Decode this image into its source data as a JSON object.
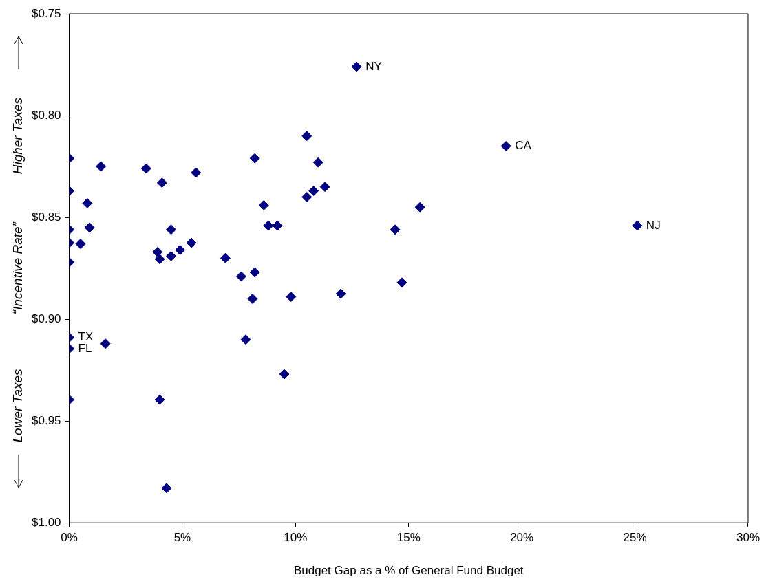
{
  "chart_data": {
    "type": "scatter",
    "xlabel": "Budget Gap as a % of General Fund Budget",
    "ylabel": "“Incentive Rate”",
    "x": [
      12.7,
      10.5,
      19.3,
      0,
      8.2,
      1.4,
      3.4,
      11.0,
      5.6,
      4.1,
      0,
      11.3,
      10.8,
      10.5,
      0.8,
      8.6,
      15.5,
      0,
      0.9,
      4.5,
      8.8,
      9.2,
      14.4,
      25.1,
      0,
      0.5,
      5.4,
      3.9,
      4.9,
      4.0,
      4.5,
      0,
      6.9,
      7.6,
      8.2,
      14.7,
      8.1,
      9.8,
      12.0,
      0,
      0,
      1.6,
      7.8,
      9.5,
      0,
      4.0,
      4.3
    ],
    "values": [
      0.776,
      0.81,
      0.815,
      0.821,
      0.821,
      0.825,
      0.826,
      0.823,
      0.828,
      0.833,
      0.837,
      0.835,
      0.837,
      0.84,
      0.843,
      0.844,
      0.845,
      0.856,
      0.855,
      0.856,
      0.854,
      0.854,
      0.856,
      0.854,
      0.8625,
      0.863,
      0.8625,
      0.867,
      0.866,
      0.8705,
      0.869,
      0.872,
      0.87,
      0.879,
      0.877,
      0.882,
      0.89,
      0.889,
      0.8875,
      0.909,
      0.9145,
      0.912,
      0.91,
      0.927,
      0.9395,
      0.9395,
      0.983
    ],
    "color": "#000080",
    "marker": "diamond",
    "xlim": [
      0,
      30
    ],
    "xticks": [
      {
        "value": 0,
        "label": "0%"
      },
      {
        "value": 5,
        "label": "5%"
      },
      {
        "value": 10,
        "label": "10%"
      },
      {
        "value": 15,
        "label": "15%"
      },
      {
        "value": 20,
        "label": "20%"
      },
      {
        "value": 25,
        "label": "25%"
      },
      {
        "value": 30,
        "label": "30%"
      }
    ],
    "ylim": [
      1.0,
      0.75
    ],
    "yticks": [
      {
        "value": 0.75,
        "label": "$0.75"
      },
      {
        "value": 0.8,
        "label": "$0.80"
      },
      {
        "value": 0.85,
        "label": "$0.85"
      },
      {
        "value": 0.9,
        "label": "$0.90"
      },
      {
        "value": 0.95,
        "label": "$0.95"
      },
      {
        "value": 1.0,
        "label": "$1.00"
      }
    ],
    "grid": false,
    "legend": false,
    "annotations": [
      "Higher Taxes",
      "Lower Taxes",
      {
        "text": "NY",
        "x": 12.7,
        "y": 0.776
      },
      {
        "text": "CA",
        "x": 19.3,
        "y": 0.815
      },
      {
        "text": "NJ",
        "x": 25.1,
        "y": 0.854
      },
      {
        "text": "TX",
        "x": 0,
        "y": 0.909
      },
      {
        "text": "FL",
        "x": 0,
        "y": 0.9145
      }
    ]
  }
}
